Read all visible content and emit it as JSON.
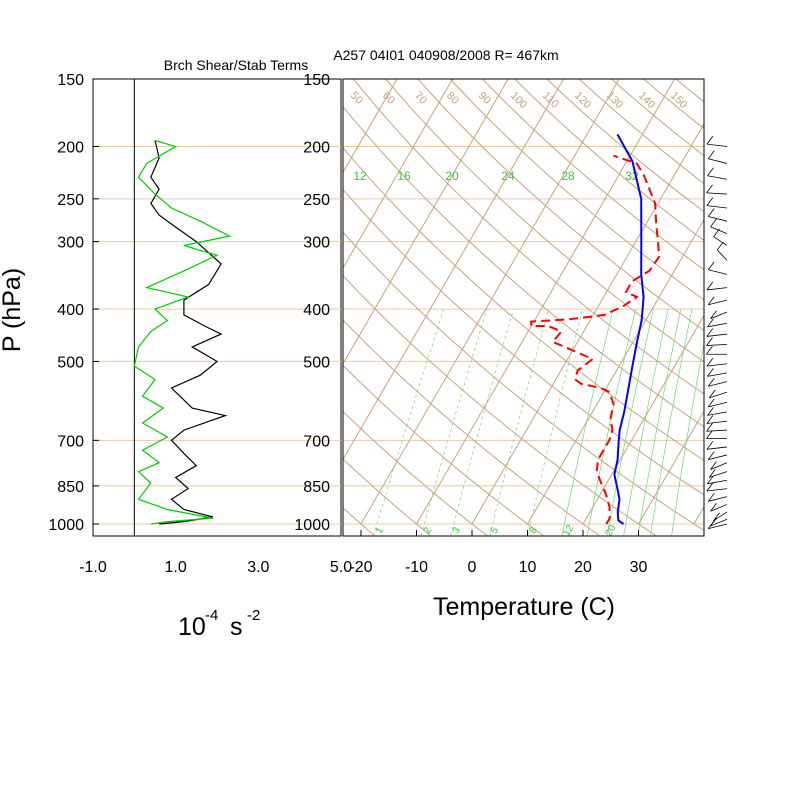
{
  "chart_data": [
    {
      "type": "line",
      "title": "Brch Shear/Stab Terms",
      "xlabel": "10",
      "xlabel_exp": "-4",
      "xlabel_tail": "s",
      "xlabel_tail_exp": "-2",
      "ylabel": "P (hPa)",
      "ylim": [
        1000,
        150
      ],
      "xlim": [
        -1.0,
        5.0
      ],
      "xticks": [
        "-1.0",
        "1.0",
        "3.0",
        "5.0"
      ],
      "pressure_ticks": [
        "150",
        "200",
        "250",
        "300",
        "400",
        "500",
        "700",
        "850",
        "1000"
      ],
      "series": [
        {
          "color": "#000000",
          "points": [
            [
              0.5,
              195
            ],
            [
              0.6,
              210
            ],
            [
              0.4,
              228
            ],
            [
              0.6,
              240
            ],
            [
              0.4,
              255
            ],
            [
              0.6,
              268
            ],
            [
              1.0,
              282
            ],
            [
              1.5,
              300
            ],
            [
              2.1,
              330
            ],
            [
              1.8,
              360
            ],
            [
              1.2,
              385
            ],
            [
              1.2,
              410
            ],
            [
              1.7,
              430
            ],
            [
              2.1,
              445
            ],
            [
              1.4,
              470
            ],
            [
              2.0,
              500
            ],
            [
              1.6,
              530
            ],
            [
              0.9,
              560
            ],
            [
              1.4,
              610
            ],
            [
              2.2,
              630
            ],
            [
              1.2,
              670
            ],
            [
              0.9,
              700
            ],
            [
              1.2,
              740
            ],
            [
              1.5,
              780
            ],
            [
              1.0,
              820
            ],
            [
              1.3,
              860
            ],
            [
              0.9,
              900
            ],
            [
              1.2,
              940
            ],
            [
              1.9,
              970
            ],
            [
              1.2,
              990
            ],
            [
              0.6,
              1000
            ]
          ]
        },
        {
          "color": "#00cc00",
          "points": [
            [
              0.5,
              195
            ],
            [
              1.0,
              200
            ],
            [
              0.3,
              215
            ],
            [
              0.1,
              228
            ],
            [
              0.5,
              245
            ],
            [
              0.9,
              260
            ],
            [
              1.6,
              275
            ],
            [
              2.3,
              293
            ],
            [
              1.2,
              305
            ],
            [
              2.0,
              318
            ],
            [
              1.2,
              340
            ],
            [
              0.3,
              365
            ],
            [
              1.3,
              380
            ],
            [
              0.5,
              400
            ],
            [
              0.8,
              420
            ],
            [
              0.4,
              440
            ],
            [
              0.1,
              470
            ],
            [
              0.0,
              510
            ],
            [
              0.5,
              540
            ],
            [
              0.2,
              580
            ],
            [
              0.7,
              610
            ],
            [
              0.2,
              650
            ],
            [
              0.8,
              690
            ],
            [
              0.2,
              730
            ],
            [
              0.6,
              770
            ],
            [
              0.1,
              800
            ],
            [
              0.4,
              840
            ],
            [
              0.1,
              900
            ],
            [
              0.8,
              940
            ],
            [
              1.9,
              975
            ],
            [
              0.8,
              990
            ],
            [
              0.4,
              1000
            ]
          ]
        }
      ]
    },
    {
      "type": "skew-t",
      "title": "A257 04I01 040908/2008 R= 467km",
      "xlabel": "Temperature (C)",
      "xticks": [
        -20,
        -10,
        0,
        10,
        20,
        30
      ],
      "pressure_ticks": [
        "150",
        "200",
        "250",
        "300",
        "400",
        "500",
        "700",
        "850",
        "1000"
      ],
      "mixing_ratio_labels": [
        "12",
        "16",
        "20",
        "24",
        "28",
        "32"
      ],
      "mixing_ratio_bottom_labels": [
        "1",
        "2",
        "3",
        "5",
        "8",
        "12",
        "20"
      ],
      "isotherm_labels": [
        "50",
        "60",
        "70",
        "80",
        "90",
        "100",
        "110",
        "120",
        "130",
        "140",
        "150"
      ],
      "temperature": {
        "color": "#0000ff",
        "points": [
          [
            27.3,
            1000
          ],
          [
            26.0,
            985
          ],
          [
            25.0,
            950
          ],
          [
            24.0,
            900
          ],
          [
            22.5,
            860
          ],
          [
            20.5,
            810
          ],
          [
            19.5,
            760
          ],
          [
            18.0,
            710
          ],
          [
            16.8,
            670
          ],
          [
            15.7,
            620
          ],
          [
            14.3,
            570
          ],
          [
            12.4,
            510
          ],
          [
            10.7,
            460
          ],
          [
            9.3,
            420
          ],
          [
            7.2,
            380
          ],
          [
            4.4,
            345
          ],
          [
            1.0,
            300
          ],
          [
            -3.5,
            250
          ],
          [
            -9.0,
            213
          ],
          [
            -14.5,
            190
          ]
        ]
      },
      "dewpoint": {
        "color": "#ff0000",
        "points": [
          [
            24.2,
            1000
          ],
          [
            24.2,
            975
          ],
          [
            23.0,
            930
          ],
          [
            21.0,
            880
          ],
          [
            19.0,
            840
          ],
          [
            17.0,
            800
          ],
          [
            16.0,
            760
          ],
          [
            16.0,
            700
          ],
          [
            15.5,
            670
          ],
          [
            14.0,
            640
          ],
          [
            13.0,
            600
          ],
          [
            11.0,
            570
          ],
          [
            9.0,
            560
          ],
          [
            5.0,
            550
          ],
          [
            3.5,
            540
          ],
          [
            3.0,
            520
          ],
          [
            4.5,
            495
          ],
          [
            -0.5,
            475
          ],
          [
            -4.5,
            460
          ],
          [
            -4.0,
            440
          ],
          [
            -7.0,
            430
          ],
          [
            -10.0,
            430
          ],
          [
            -10.5,
            422
          ],
          [
            -4.0,
            418
          ],
          [
            2.0,
            410
          ],
          [
            4.5,
            395
          ],
          [
            6.0,
            380
          ],
          [
            3.5,
            372
          ],
          [
            3.5,
            355
          ],
          [
            5.5,
            340
          ],
          [
            5.8,
            320
          ],
          [
            4.0,
            300
          ],
          [
            2.0,
            280
          ],
          [
            -0.5,
            255
          ],
          [
            -3.0,
            240
          ],
          [
            -5.5,
            226
          ],
          [
            -8.0,
            215
          ],
          [
            -13.0,
            208
          ]
        ]
      }
    }
  ],
  "wind_barbs": {
    "color": "#000000",
    "levels": [
      200,
      215,
      230,
      245,
      260,
      275,
      290,
      305,
      325,
      345,
      365,
      385,
      405,
      425,
      445,
      465,
      485,
      505,
      525,
      545,
      570,
      595,
      620,
      645,
      670,
      695,
      720,
      745,
      770,
      800,
      830,
      860,
      890,
      920,
      950,
      980,
      1000
    ],
    "direction_deg": [
      280,
      290,
      285,
      275,
      280,
      290,
      300,
      310,
      320,
      290,
      260,
      250,
      240,
      255,
      260,
      265,
      270,
      260,
      255,
      250,
      245,
      250,
      255,
      260,
      265,
      270,
      260,
      250,
      240,
      245,
      255,
      260,
      250,
      240,
      230,
      240,
      250
    ]
  }
}
